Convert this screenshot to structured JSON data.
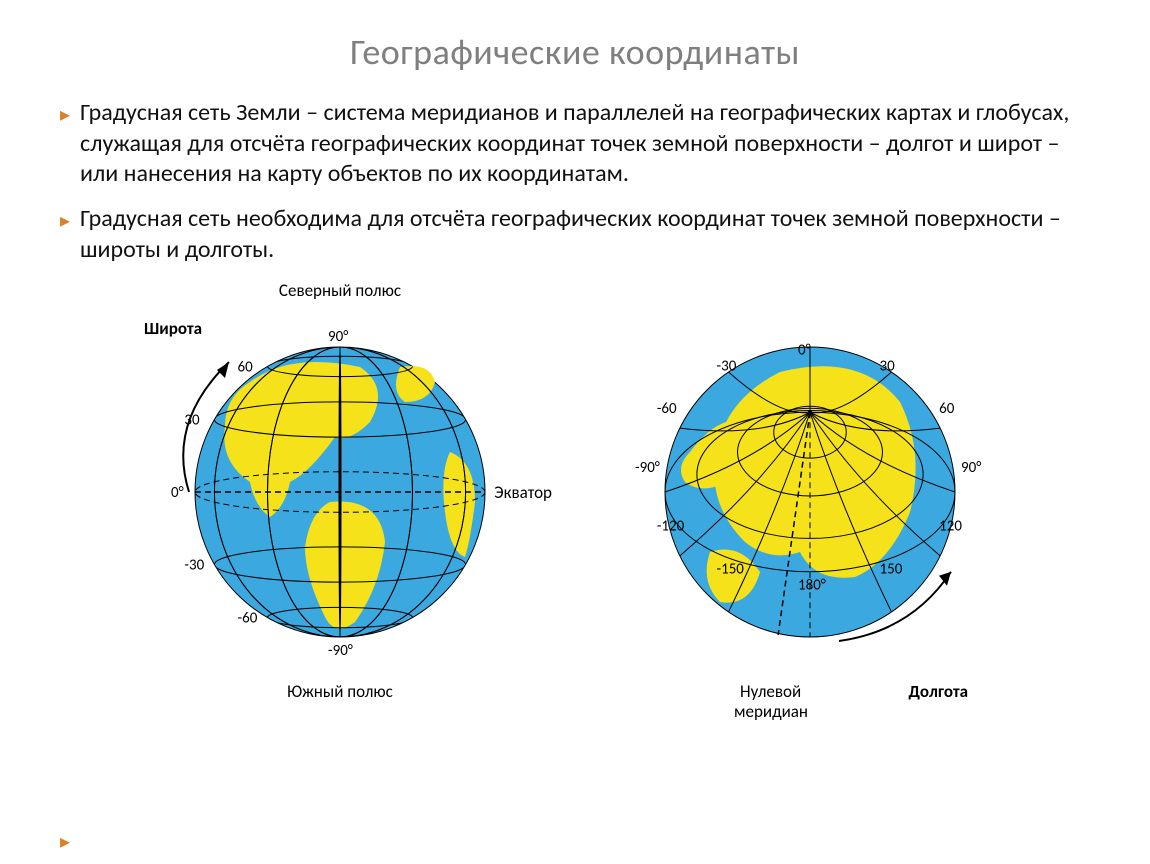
{
  "title": "Географические координаты",
  "bullets": [
    "Градусная сеть Земли – система меридианов и параллелей на географических картах и глобусах, служащая для отсчёта географических координат точек земной поверхности – долгот и широт – или нанесения на карту объектов по их координатам.",
    "Градусная сеть необходима для отсчёта географических координат точек земной поверхности – широты и долготы."
  ],
  "globe_left": {
    "type": "globe-diagram-latitude",
    "radius": 145,
    "ocean_color": "#3ba9e0",
    "land_color": "#f5e21a",
    "grid_color": "#000000",
    "grid_width": 1,
    "equator_dash": "6,4",
    "latitudes_deg": [
      -60,
      -30,
      0,
      30,
      60
    ],
    "lat_tick_labels": [
      {
        "deg": 90,
        "text": "90°",
        "top": true
      },
      {
        "deg": 60,
        "text": "60"
      },
      {
        "deg": 30,
        "text": "30"
      },
      {
        "deg": 0,
        "text": "0°"
      },
      {
        "deg": -30,
        "text": "-30"
      },
      {
        "deg": -60,
        "text": "-60"
      },
      {
        "deg": -90,
        "text": "-90°",
        "bottom": true
      }
    ],
    "labels": {
      "north_pole": "Северный полюс",
      "south_pole": "Южный полюс",
      "equator": "Экватор",
      "latitude": "Широта"
    }
  },
  "globe_right": {
    "type": "globe-diagram-longitude",
    "radius": 145,
    "ocean_color": "#3ba9e0",
    "land_color": "#f5e21a",
    "grid_color": "#000000",
    "grid_width": 1,
    "meridian_dash": "6,4",
    "lon_tick_labels": [
      {
        "deg": -150,
        "text": "-150"
      },
      {
        "deg": -120,
        "text": "-120"
      },
      {
        "deg": -90,
        "text": "-90°"
      },
      {
        "deg": -60,
        "text": "-60"
      },
      {
        "deg": -30,
        "text": "-30"
      },
      {
        "deg": 0,
        "text": "0°"
      },
      {
        "deg": 30,
        "text": "30"
      },
      {
        "deg": 60,
        "text": "60"
      },
      {
        "deg": 90,
        "text": "90°"
      },
      {
        "deg": 120,
        "text": "120"
      },
      {
        "deg": 150,
        "text": "150"
      },
      {
        "deg": 180,
        "text": "180°"
      }
    ],
    "labels": {
      "prime_meridian_1": "Нулевой",
      "prime_meridian_2": "меридиан",
      "longitude": "Долгота"
    }
  },
  "colors": {
    "title": "#7f7f7f",
    "bullet_marker": "#d9822b",
    "text": "#111111"
  },
  "font_sizes": {
    "title": 36,
    "body": 24,
    "axis": 17
  }
}
